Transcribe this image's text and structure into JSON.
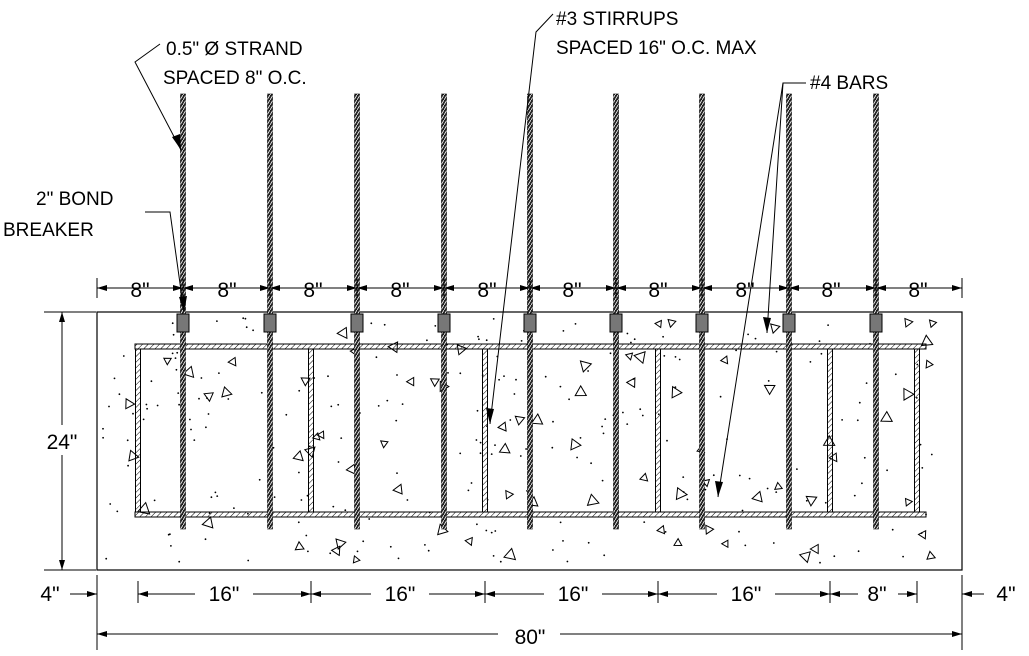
{
  "notes": {
    "strand_line1": "0.5\" Ø STRAND",
    "strand_line2": "SPACED 8\" O.C.",
    "stirrup_line1": "#3 STIRRUPS",
    "stirrup_line2": "SPACED 16\" O.C. MAX",
    "bars": "#4 BARS",
    "bond_line1": "2\" BOND",
    "bond_line2": "BREAKER"
  },
  "dims": {
    "top": [
      "8\"",
      "8\"",
      "8\"",
      "8\"",
      "8\"",
      "8\"",
      "8\"",
      "8\"",
      "8\"",
      "8\""
    ],
    "height": "24\"",
    "bottom_left": "4\"",
    "bottom_right": "4\"",
    "bottom": [
      "16\"",
      "16\"",
      "16\"",
      "16\"",
      "8\""
    ],
    "total": "80\""
  }
}
